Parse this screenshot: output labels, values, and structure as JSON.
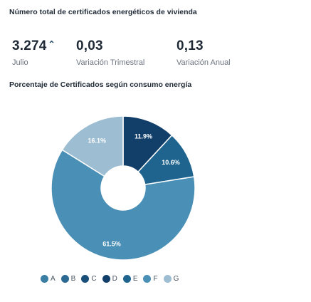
{
  "header": {
    "title": "Número total de certificados energéticos de vivienda"
  },
  "kpis": [
    {
      "value": "3.274",
      "trend": "⌃",
      "label": "Julio"
    },
    {
      "value": "0,03",
      "label": "Variación Trimestral"
    },
    {
      "value": "0,13",
      "label": "Variación Anual"
    }
  ],
  "donut_title": "Porcentaje de Certificados según consumo energía",
  "chart_data": {
    "type": "pie",
    "donut": true,
    "categories": [
      "D",
      "E",
      "F",
      "G"
    ],
    "values": [
      11.9,
      10.6,
      61.5,
      16.1
    ],
    "labels": [
      "11.9%",
      "10.6%",
      "61.5%",
      "16.1%"
    ],
    "colors": [
      "#123f69",
      "#1e648f",
      "#4a8fb5",
      "#9dbdd2"
    ],
    "legend": {
      "position": "bottom",
      "items": [
        {
          "label": "A",
          "color": "#3a7ea4"
        },
        {
          "label": "B",
          "color": "#2d6a93"
        },
        {
          "label": "C",
          "color": "#1a4f7a"
        },
        {
          "label": "D",
          "color": "#123f69"
        },
        {
          "label": "E",
          "color": "#1e648f"
        },
        {
          "label": "F",
          "color": "#4a8fb5"
        },
        {
          "label": "G",
          "color": "#9dbdd2"
        }
      ]
    }
  }
}
